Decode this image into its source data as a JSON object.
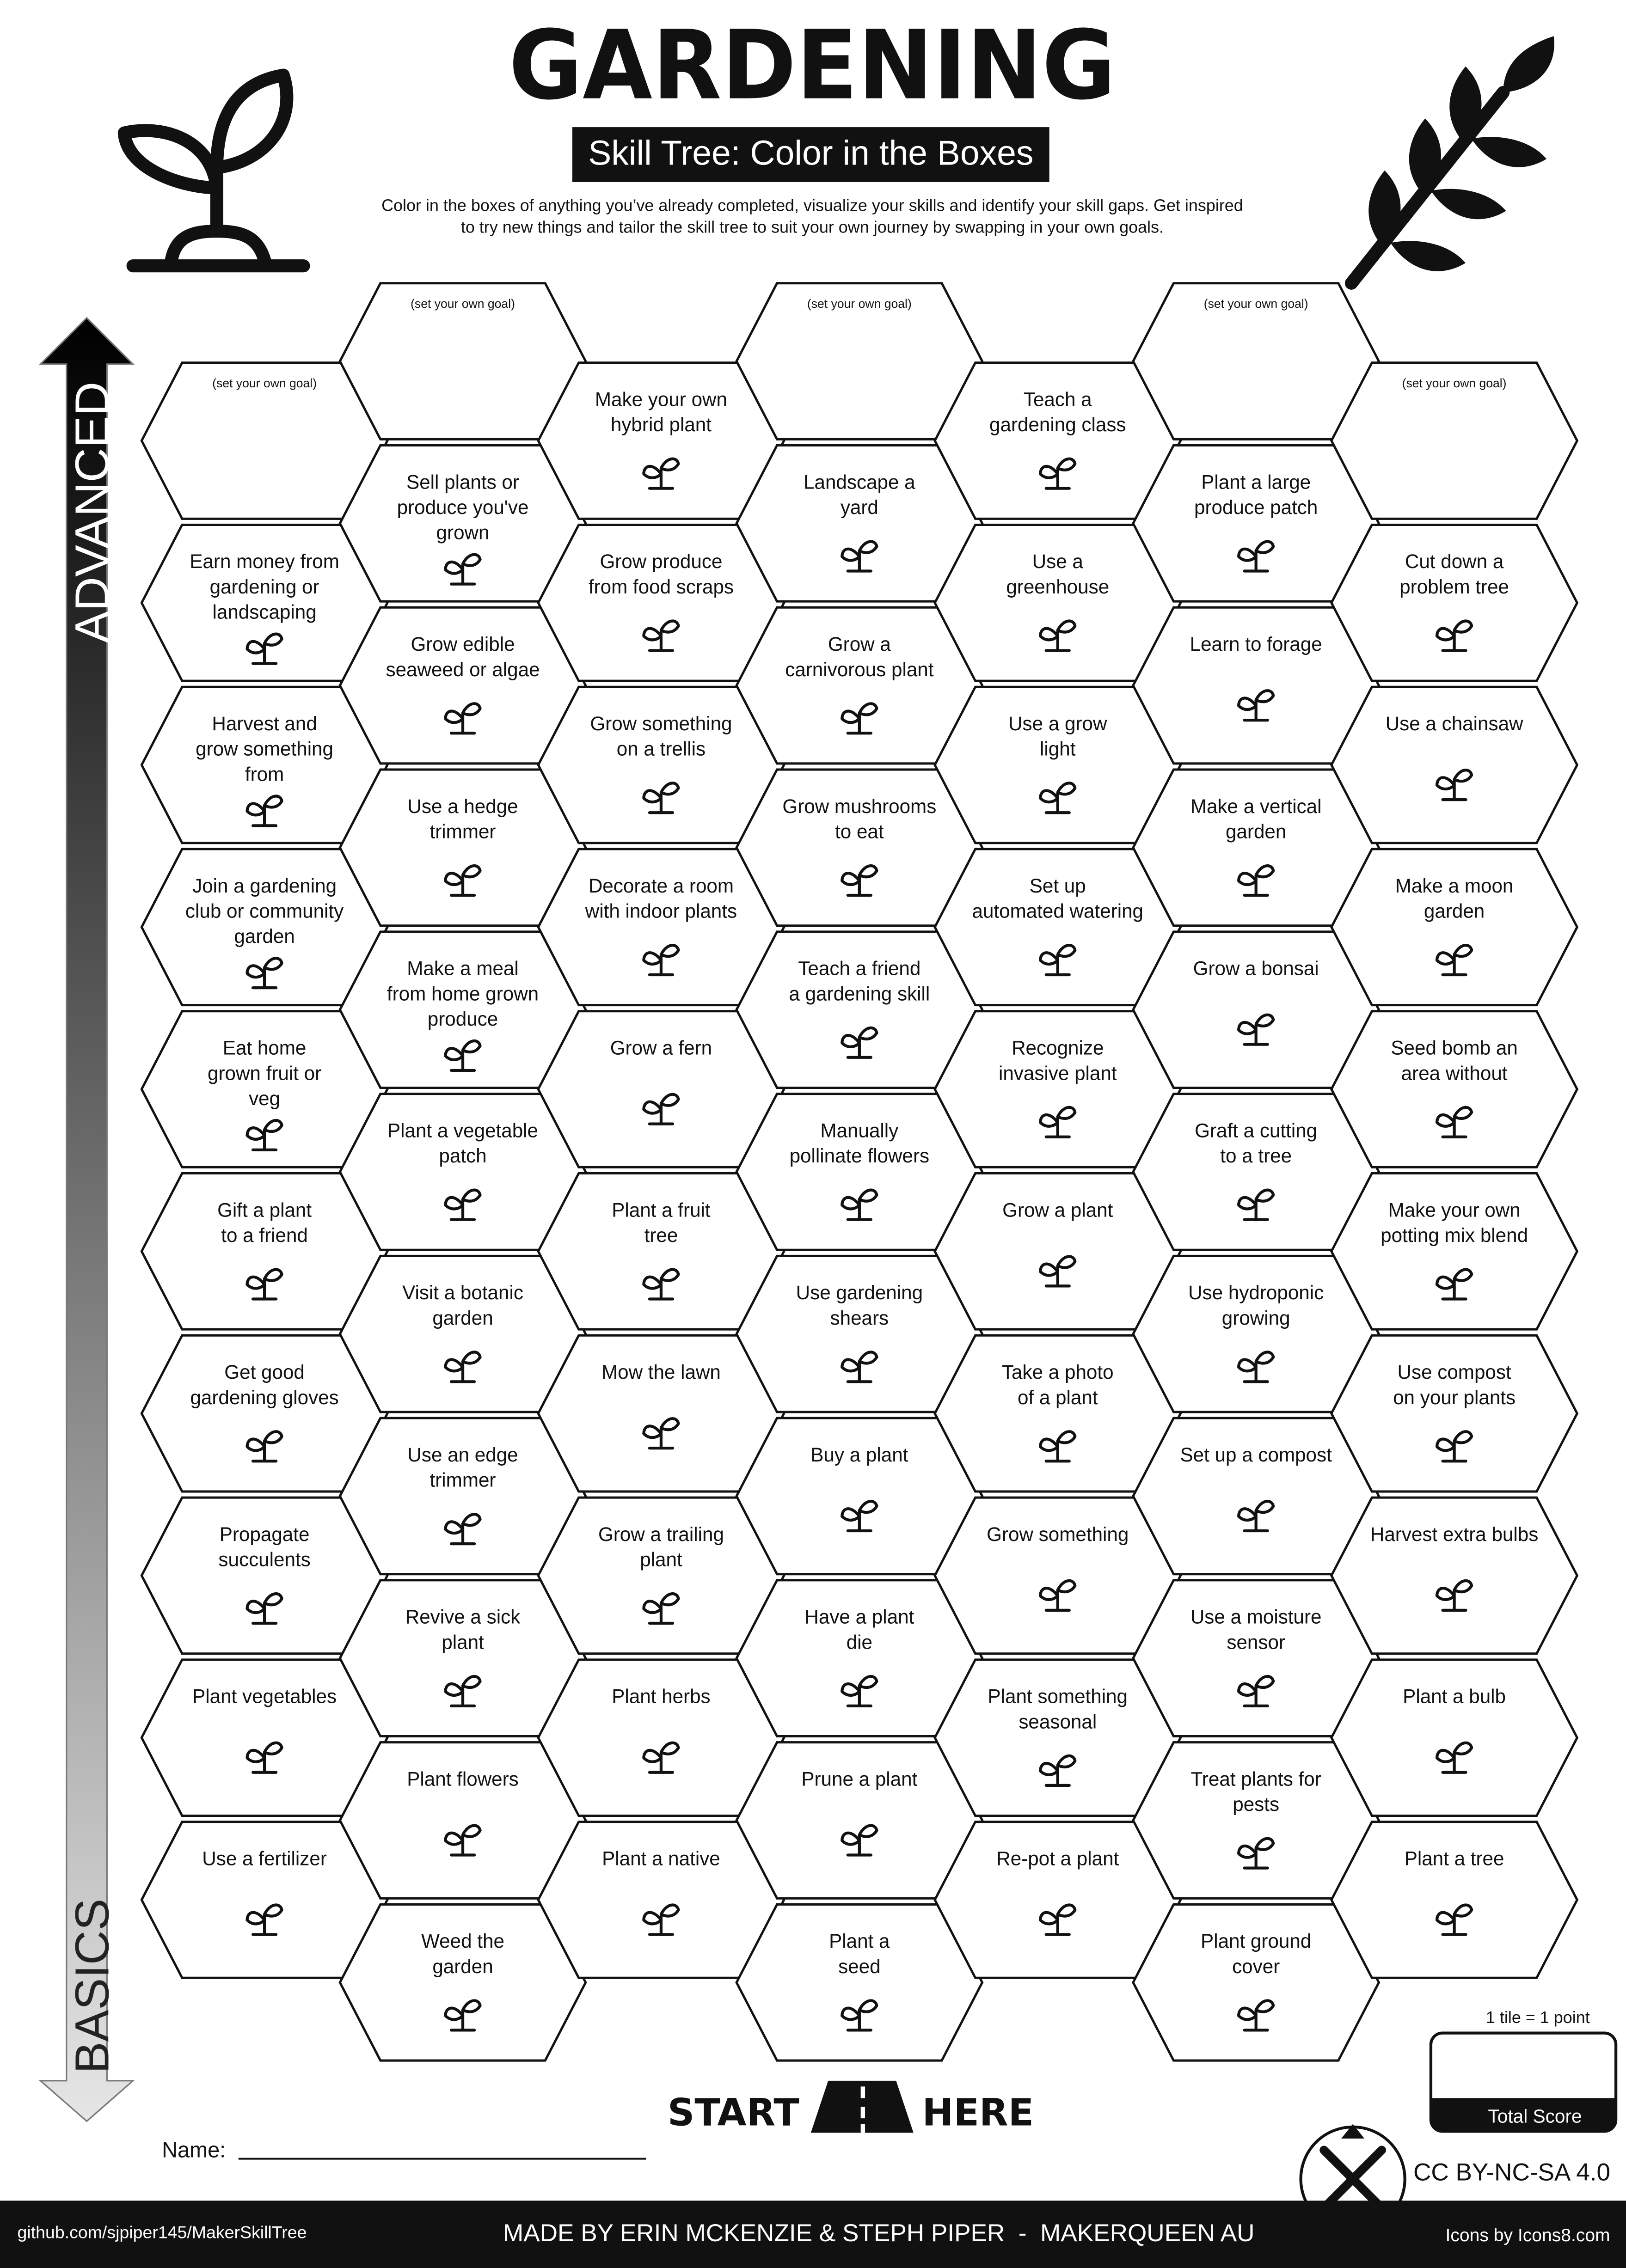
{
  "header": {
    "title": "GARDENING",
    "subtitle": "Skill Tree: Color in the Boxes",
    "description": [
      "Color in the boxes of anything you’ve already completed, visualize your skills and identify your skill gaps.  Get inspired",
      "to try new things and tailor the skill tree to suit your own journey by swapping in your own goals."
    ]
  },
  "axis": {
    "top": "ADVANCED",
    "bottom": "BASICS"
  },
  "columns": [
    {
      "tiles": [
        {
          "note": "(set your own goal)"
        },
        {
          "lines": [
            "Earn money from",
            "gardening or",
            "landscaping"
          ]
        },
        {
          "lines": [
            "Harvest and",
            "grow something",
            "from"
          ]
        },
        {
          "lines": [
            "Join a gardening",
            "club or community",
            "garden"
          ]
        },
        {
          "lines": [
            "Eat home",
            "grown fruit or",
            "veg"
          ]
        },
        {
          "lines": [
            "Gift a plant",
            "to a friend"
          ]
        },
        {
          "lines": [
            "Get good",
            "gardening gloves"
          ]
        },
        {
          "lines": [
            "Propagate",
            "succulents"
          ]
        },
        {
          "lines": [
            "Plant vegetables"
          ]
        },
        {
          "lines": [
            "Use a fertilizer"
          ]
        }
      ]
    },
    {
      "tiles": [
        {
          "note": "(set your own goal)"
        },
        {
          "lines": [
            "Sell plants or",
            "produce you've",
            "grown"
          ]
        },
        {
          "lines": [
            "Grow edible",
            "seaweed or algae"
          ]
        },
        {
          "lines": [
            "Use a hedge",
            "trimmer"
          ]
        },
        {
          "lines": [
            "Make a meal",
            "from home grown",
            "produce"
          ]
        },
        {
          "lines": [
            "Plant a vegetable",
            "patch"
          ]
        },
        {
          "lines": [
            "Visit a botanic",
            "garden"
          ]
        },
        {
          "lines": [
            "Use an edge",
            "trimmer"
          ]
        },
        {
          "lines": [
            "Revive a sick",
            "plant"
          ]
        },
        {
          "lines": [
            "Plant flowers"
          ]
        },
        {
          "lines": [
            "Weed the",
            "garden"
          ]
        }
      ]
    },
    {
      "tiles": [
        {
          "lines": [
            "Make your own",
            "hybrid plant"
          ]
        },
        {
          "lines": [
            "Grow produce",
            "from food scraps"
          ]
        },
        {
          "lines": [
            "Grow something",
            "on a trellis"
          ]
        },
        {
          "lines": [
            "Decorate a room",
            "with indoor plants"
          ]
        },
        {
          "lines": [
            "Grow a fern"
          ]
        },
        {
          "lines": [
            "Plant a fruit",
            "tree"
          ]
        },
        {
          "lines": [
            "Mow the lawn"
          ]
        },
        {
          "lines": [
            "Grow a trailing",
            "plant"
          ]
        },
        {
          "lines": [
            "Plant herbs"
          ]
        },
        {
          "lines": [
            "Plant a native"
          ]
        }
      ]
    },
    {
      "tiles": [
        {
          "note": "(set your own goal)"
        },
        {
          "lines": [
            "Landscape a",
            "yard"
          ]
        },
        {
          "lines": [
            "Grow a",
            "carnivorous plant"
          ]
        },
        {
          "lines": [
            "Grow mushrooms",
            "to eat"
          ]
        },
        {
          "lines": [
            "Teach a friend",
            "a gardening skill"
          ]
        },
        {
          "lines": [
            "Manually",
            "pollinate flowers"
          ]
        },
        {
          "lines": [
            "Use gardening",
            "shears"
          ]
        },
        {
          "lines": [
            "Buy a plant"
          ]
        },
        {
          "lines": [
            "Have a plant",
            "die"
          ]
        },
        {
          "lines": [
            "Prune a plant"
          ]
        },
        {
          "lines": [
            "Plant a",
            "seed"
          ]
        }
      ]
    },
    {
      "tiles": [
        {
          "lines": [
            "Teach a",
            "gardening class"
          ]
        },
        {
          "lines": [
            "Use a",
            "greenhouse"
          ]
        },
        {
          "lines": [
            "Use a grow",
            "light"
          ]
        },
        {
          "lines": [
            "Set up",
            "automated watering"
          ]
        },
        {
          "lines": [
            "Recognize",
            "invasive plant"
          ]
        },
        {
          "lines": [
            "Grow a plant"
          ]
        },
        {
          "lines": [
            "Take a photo",
            "of a plant"
          ]
        },
        {
          "lines": [
            "Grow something"
          ]
        },
        {
          "lines": [
            "Plant something",
            "seasonal"
          ]
        },
        {
          "lines": [
            "Re-pot a plant"
          ]
        }
      ]
    },
    {
      "tiles": [
        {
          "note": "(set your own goal)"
        },
        {
          "lines": [
            "Plant a large",
            "produce patch"
          ]
        },
        {
          "lines": [
            "Learn to forage"
          ]
        },
        {
          "lines": [
            "Make a vertical",
            "garden"
          ]
        },
        {
          "lines": [
            "Grow a bonsai"
          ]
        },
        {
          "lines": [
            "Graft a cutting",
            "to a tree"
          ]
        },
        {
          "lines": [
            "Use hydroponic",
            "growing"
          ]
        },
        {
          "lines": [
            "Set up a compost"
          ]
        },
        {
          "lines": [
            "Use a moisture",
            "sensor"
          ]
        },
        {
          "lines": [
            "Treat plants for",
            "pests"
          ]
        },
        {
          "lines": [
            "Plant ground",
            "cover"
          ]
        }
      ]
    },
    {
      "tiles": [
        {
          "note": "(set your own goal)"
        },
        {
          "lines": [
            "Cut down a",
            "problem tree"
          ]
        },
        {
          "lines": [
            "Use a chainsaw"
          ]
        },
        {
          "lines": [
            "Make a moon",
            "garden"
          ]
        },
        {
          "lines": [
            "Seed bomb an",
            "area without"
          ]
        },
        {
          "lines": [
            "Make your own",
            "potting mix blend"
          ]
        },
        {
          "lines": [
            "Use compost",
            "on your plants"
          ]
        },
        {
          "lines": [
            "Harvest extra bulbs"
          ]
        },
        {
          "lines": [
            "Plant a bulb"
          ]
        },
        {
          "lines": [
            "Plant a tree"
          ]
        }
      ]
    }
  ],
  "start": {
    "left": "START",
    "right": "HERE"
  },
  "name_label": "Name:",
  "score": {
    "rule": "1 tile = 1 point",
    "label": "Total Score"
  },
  "license": "CC BY-NC-SA 4.0",
  "footer": {
    "link": "github.com/sjpiper145/MakerSkillTree",
    "credit": "MADE BY ERIN MCKENZIE & STEPH PIPER  -  MAKERQUEEN AU",
    "icons": "Icons by Icons8.com"
  }
}
